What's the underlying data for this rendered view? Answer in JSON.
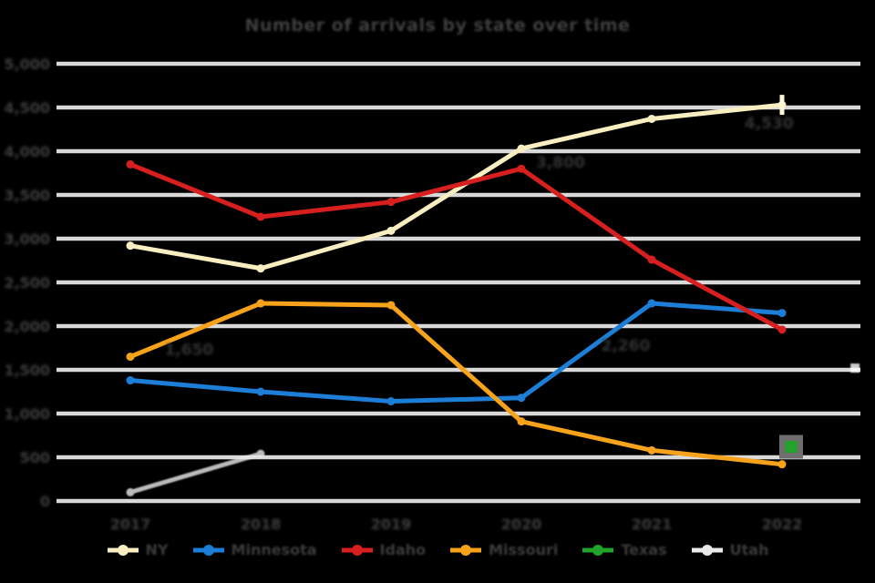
{
  "chart_data": {
    "type": "line",
    "title": "Number of arrivals by state over time",
    "categories": [
      "2017",
      "2018",
      "2019",
      "2020",
      "2021",
      "2022"
    ],
    "xlabel": "",
    "ylabel": "",
    "ylim": [
      0,
      5000
    ],
    "y_tick_step": 500,
    "y_tick_labels": [
      "5,000",
      "4,500",
      "4,000",
      "3,500",
      "3,000",
      "2,500",
      "2,000",
      "1,500",
      "1,000",
      "500",
      "0"
    ],
    "grid": "horizontal",
    "legend_position": "bottom",
    "background_color": "#000000",
    "gridline_color": "#d9d9d9",
    "text_color": "#3e3e3e",
    "series": [
      {
        "name": "NY",
        "color": "#f8eec0",
        "values": [
          2920,
          2660,
          3090,
          4030,
          4370,
          4530
        ],
        "end_tick": true
      },
      {
        "name": "Minnesota",
        "color": "#1c7ed6",
        "values": [
          1380,
          1250,
          1140,
          1180,
          2260,
          2150
        ]
      },
      {
        "name": "Idaho",
        "color": "#d81f1f",
        "values": [
          3850,
          3250,
          3420,
          3800,
          2760,
          1960
        ]
      },
      {
        "name": "Missouri",
        "color": "#f6a21b",
        "values": [
          1650,
          2260,
          2240,
          910,
          580,
          420
        ]
      },
      {
        "name": "Texas",
        "color": "#22a32a",
        "values": [
          null,
          null,
          null,
          null,
          null,
          620
        ],
        "point_only": true,
        "halo": true
      },
      {
        "name": "Utah",
        "color": "#eaeaea",
        "values": [
          100,
          540,
          null,
          null,
          null,
          null
        ],
        "faint": true,
        "extra_point": {
          "x_frac": 5.56,
          "value": 1520
        }
      }
    ],
    "annotations": [
      {
        "text": "1,650",
        "x_frac": 0.45,
        "value": 1670
      },
      {
        "text": "3,800",
        "x_frac": 3.3,
        "value": 3810
      },
      {
        "text": "2,260",
        "x_frac": 3.8,
        "value": 1720
      },
      {
        "text": "4,530",
        "x_frac": 4.9,
        "value": 4260
      }
    ]
  }
}
